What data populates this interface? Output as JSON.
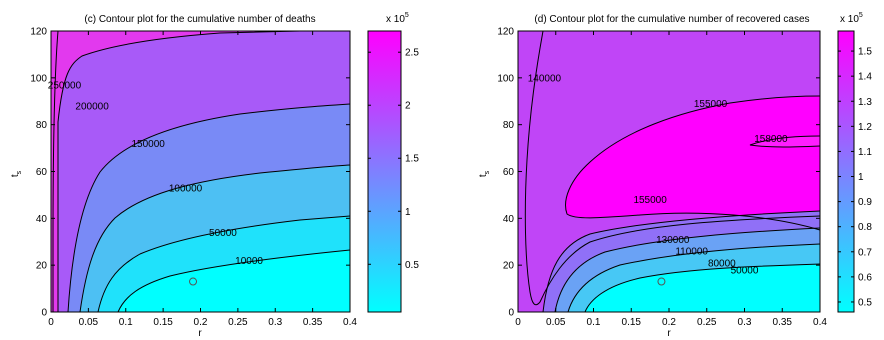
{
  "chart_data": [
    {
      "type": "contour",
      "title": "(c) Contour plot for the cumulative number of deaths",
      "xlabel": "r",
      "ylabel": "t",
      "ylabel_subscript": "s",
      "xlim": [
        0,
        0.4
      ],
      "ylim": [
        0,
        120
      ],
      "xticks": [
        "0",
        "0.05",
        "0.1",
        "0.15",
        "0.2",
        "0.25",
        "0.3",
        "0.35",
        "0.4"
      ],
      "yticks": [
        "0",
        "20",
        "40",
        "60",
        "80",
        "100",
        "120"
      ],
      "colorbar": {
        "exponent_label": "x 10",
        "exponent": "5",
        "ticks": [
          "0.5",
          "1",
          "1.5",
          "2",
          "2.5"
        ],
        "range": [
          0.05,
          2.7
        ],
        "colors": [
          "#00ffff",
          "#ff00ff"
        ]
      },
      "contour_labels": [
        "250000",
        "200000",
        "150000",
        "100000",
        "50000",
        "10000"
      ],
      "contour_label_positions": [
        {
          "r": 0.018,
          "t": 97,
          "label": "250000"
        },
        {
          "r": 0.055,
          "t": 88,
          "label": "200000"
        },
        {
          "r": 0.13,
          "t": 72,
          "label": "150000"
        },
        {
          "r": 0.18,
          "t": 53,
          "label": "100000"
        },
        {
          "r": 0.23,
          "t": 34,
          "label": "50000"
        },
        {
          "r": 0.265,
          "t": 22,
          "label": "10000"
        }
      ],
      "marker": {
        "r": 0.19,
        "t": 13
      }
    },
    {
      "type": "contour",
      "title": "(d) Contour plot for the cumulative number of recovered cases",
      "xlabel": "r",
      "ylabel": "t",
      "ylabel_subscript": "s",
      "xlim": [
        0,
        0.4
      ],
      "ylim": [
        0,
        120
      ],
      "xticks": [
        "0",
        "0.05",
        "0.1",
        "0.15",
        "0.2",
        "0.25",
        "0.3",
        "0.35",
        "0.4"
      ],
      "yticks": [
        "0",
        "20",
        "40",
        "60",
        "80",
        "100",
        "120"
      ],
      "colorbar": {
        "exponent_label": "x 10",
        "exponent": "5",
        "ticks": [
          "0.5",
          "0.6",
          "0.7",
          "0.8",
          "0.9",
          "1",
          "1.1",
          "1.2",
          "1.3",
          "1.4",
          "1.5"
        ],
        "range": [
          0.46,
          1.58
        ],
        "colors": [
          "#00ffff",
          "#ff00ff"
        ]
      },
      "contour_labels": [
        "140000",
        "155000",
        "158000",
        "155000",
        "130000",
        "110000",
        "80000",
        "50000"
      ],
      "contour_label_positions": [
        {
          "r": 0.035,
          "t": 100,
          "label": "140000"
        },
        {
          "r": 0.255,
          "t": 89,
          "label": "155000"
        },
        {
          "r": 0.335,
          "t": 74,
          "label": "158000"
        },
        {
          "r": 0.175,
          "t": 48,
          "label": "155000"
        },
        {
          "r": 0.205,
          "t": 31,
          "label": "130000"
        },
        {
          "r": 0.23,
          "t": 26,
          "label": "110000"
        },
        {
          "r": 0.27,
          "t": 21,
          "label": "80000"
        },
        {
          "r": 0.3,
          "t": 18,
          "label": "50000"
        }
      ],
      "marker": {
        "r": 0.19,
        "t": 13
      }
    }
  ]
}
